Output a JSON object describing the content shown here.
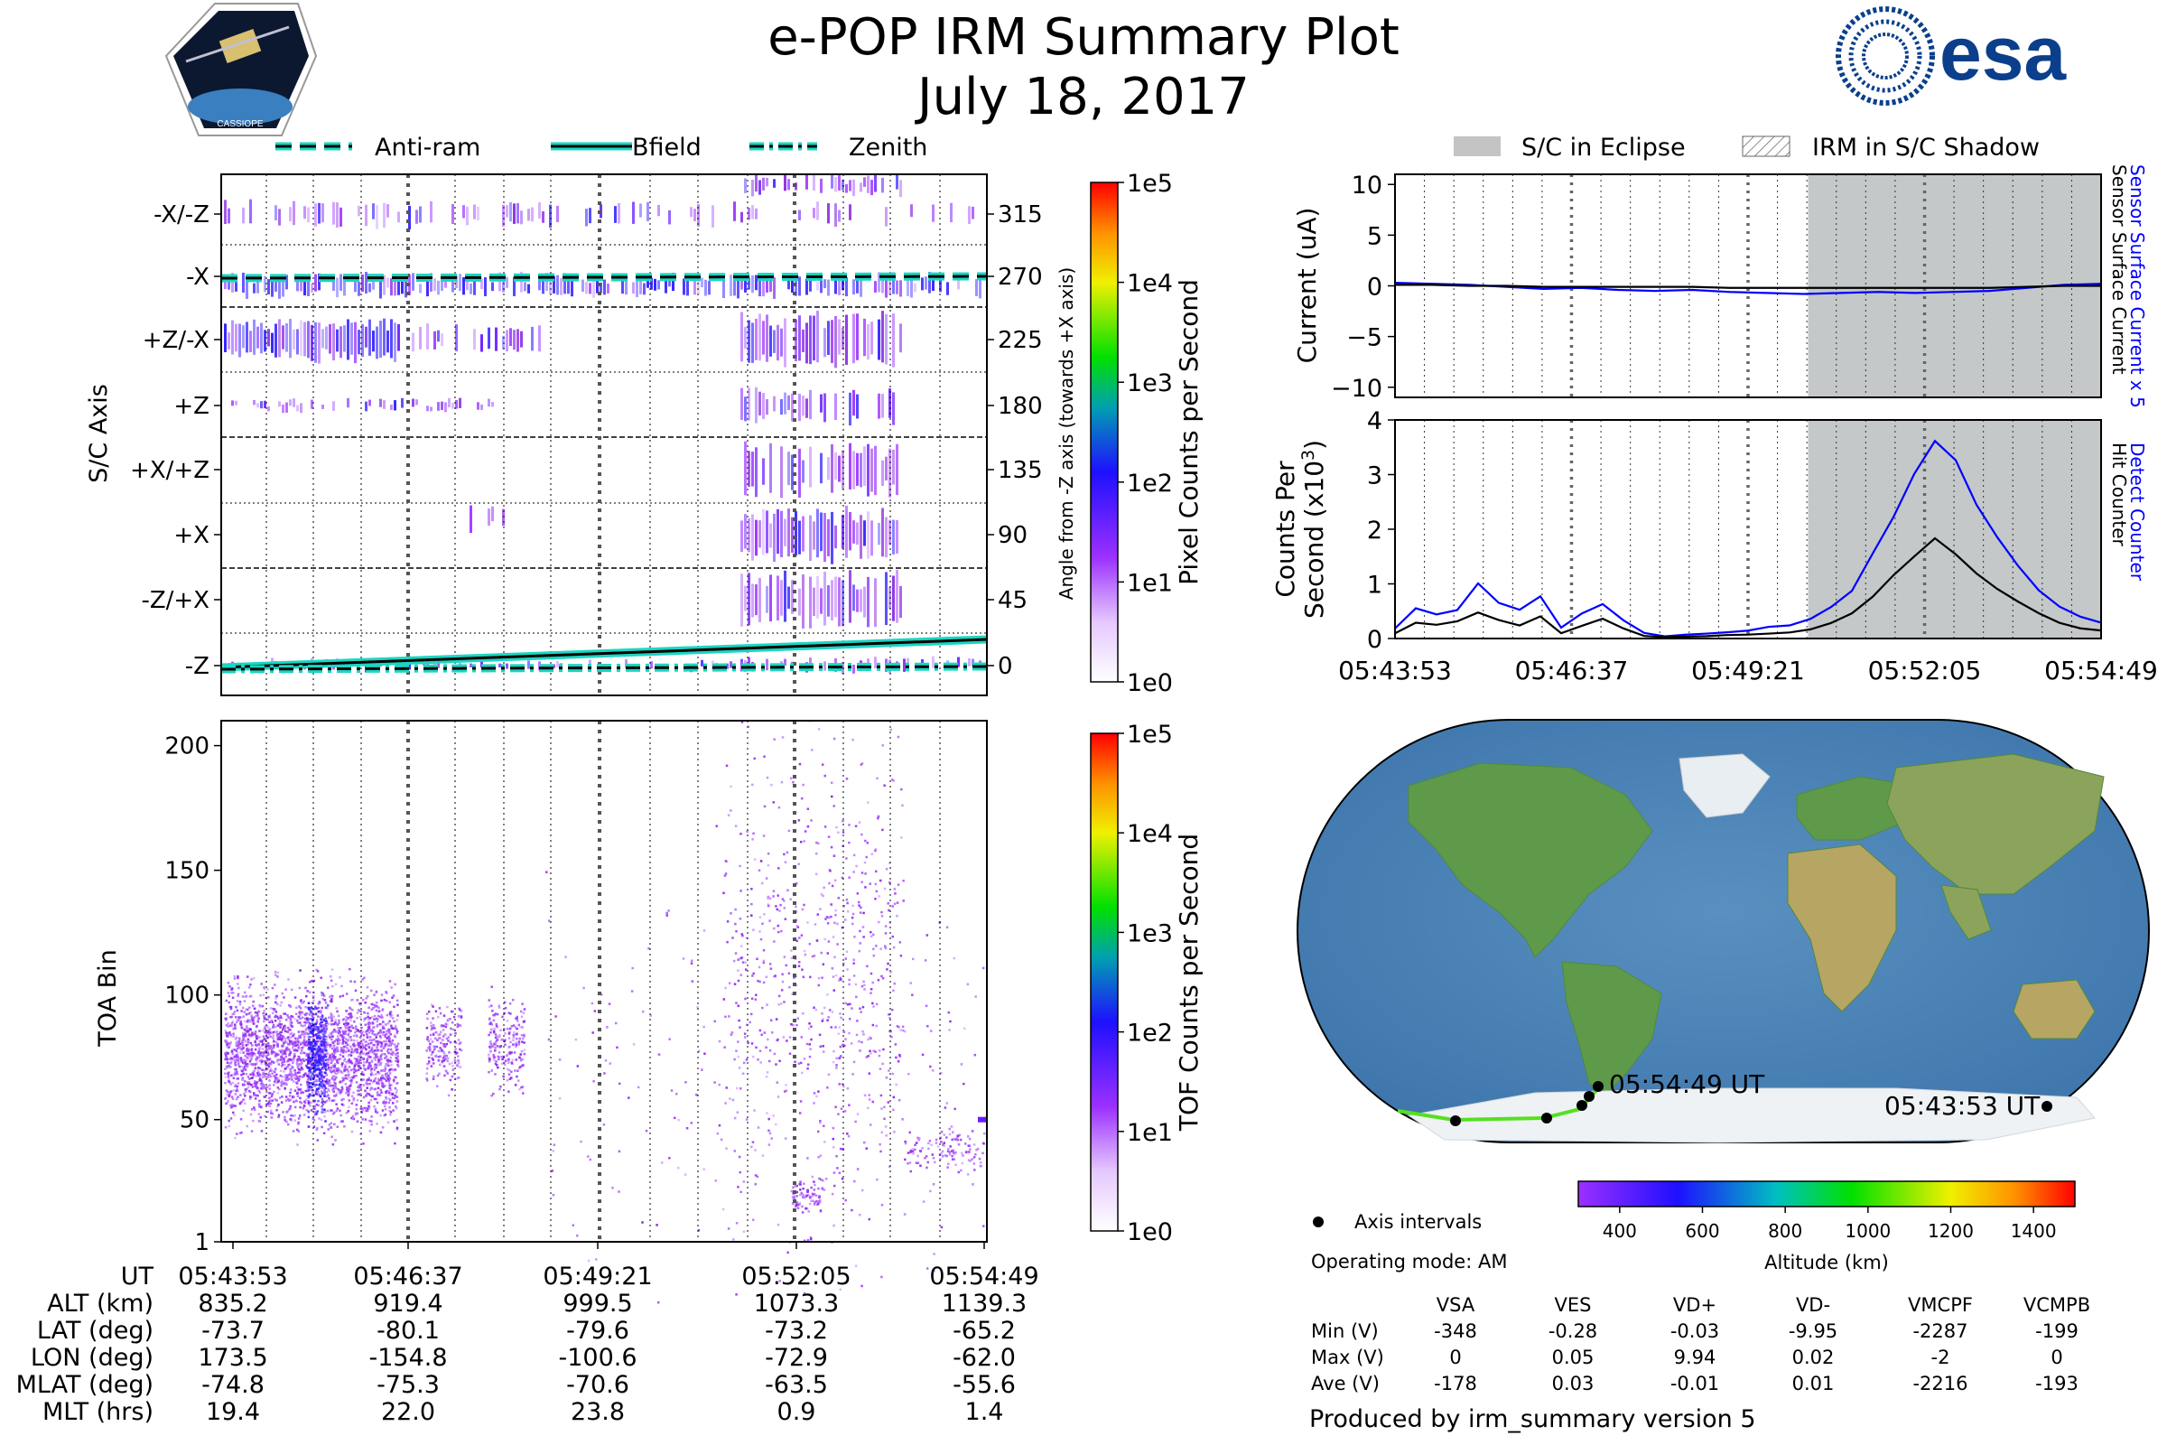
{
  "header": {
    "title": "e-POP IRM Summary Plot",
    "date": "July 18, 2017",
    "logo_left_text": "CASSIOPE",
    "logo_right_text": "esa"
  },
  "chart_data": [
    {
      "id": "sc_axis",
      "type": "heatmap",
      "ylabel": "S/C Axis",
      "ylabel_right": "Angle from -Z axis (towards +X axis)",
      "axis_labels": [
        "-X/-Z",
        "-X",
        "+Z/-X",
        "+Z",
        "+X/+Z",
        "+X",
        "-Z/+X",
        "-Z"
      ],
      "angle_ticks": [
        "315",
        "270",
        "225",
        "180",
        "135",
        "90",
        "45",
        "0"
      ],
      "legend": [
        "Anti-ram",
        "Bfield",
        "Zenith"
      ],
      "colorbar": {
        "label": "Pixel Counts per Second",
        "ticks": [
          "1e0",
          "1e1",
          "1e2",
          "1e3",
          "1e4",
          "1e5"
        ]
      }
    },
    {
      "id": "toa",
      "type": "heatmap",
      "ylabel": "TOA Bin",
      "yticks": [
        "1",
        "50",
        "100",
        "150",
        "200"
      ],
      "ylim": [
        1,
        210
      ],
      "colorbar": {
        "label": "TOF Counts per Second",
        "ticks": [
          "1e0",
          "1e1",
          "1e2",
          "1e3",
          "1e4",
          "1e5"
        ]
      }
    },
    {
      "id": "current",
      "type": "line",
      "ylabel": "Current (uA)",
      "ylim": [
        -11,
        11
      ],
      "yticks": [
        "10",
        "5",
        "0",
        "−5",
        "−10"
      ],
      "right_labels": [
        "Sensor Surface Current x 5",
        "Sensor Surface Current"
      ],
      "legend": [
        "S/C in Eclipse",
        "IRM in S/C Shadow"
      ],
      "eclipse_start_fraction": 0.585,
      "series": [
        {
          "name": "Sensor Surface Current x 5",
          "color": "#0000ff",
          "values": [
            0.3,
            0.2,
            0.1,
            -0.1,
            -0.3,
            -0.2,
            -0.4,
            -0.5,
            -0.4,
            -0.6,
            -0.7,
            -0.8,
            -0.7,
            -0.6,
            -0.7,
            -0.6,
            -0.5,
            -0.2,
            0.1,
            0.2
          ]
        },
        {
          "name": "Sensor Surface Current",
          "color": "#000000",
          "values": [
            0.1,
            0.1,
            0.0,
            0.0,
            -0.1,
            -0.1,
            -0.1,
            -0.1,
            -0.1,
            -0.2,
            -0.2,
            -0.2,
            -0.2,
            -0.2,
            -0.2,
            -0.2,
            -0.2,
            -0.1,
            0.0,
            0.0
          ]
        }
      ]
    },
    {
      "id": "counts",
      "type": "line",
      "ylabel1": "Counts Per",
      "ylabel2": "Second (x10",
      "ylabel_exp": "3",
      "ylim": [
        0,
        4
      ],
      "yticks": [
        "4",
        "3",
        "2",
        "1",
        "0"
      ],
      "right_labels": [
        "Detect Counter",
        "Hit Counter"
      ],
      "xticks": [
        "05:43:53",
        "05:46:37",
        "05:49:21",
        "05:52:05",
        "05:54:49"
      ],
      "series": [
        {
          "name": "Detect Counter",
          "color": "#0000ff",
          "values": [
            0.2,
            0.55,
            0.45,
            0.55,
            1.0,
            0.65,
            0.5,
            0.8,
            0.2,
            0.45,
            0.65,
            0.35,
            0.1,
            0.05,
            0.08,
            0.1,
            0.12,
            0.15,
            0.2,
            0.25,
            0.35,
            0.55,
            0.9,
            1.5,
            2.3,
            3.0,
            3.65,
            3.2,
            2.5,
            1.8,
            1.3,
            0.9,
            0.6,
            0.4,
            0.3
          ]
        },
        {
          "name": "Hit Counter",
          "color": "#000000",
          "values": [
            0.1,
            0.3,
            0.25,
            0.3,
            0.5,
            0.35,
            0.25,
            0.4,
            0.1,
            0.25,
            0.35,
            0.2,
            0.05,
            0.03,
            0.04,
            0.05,
            0.06,
            0.08,
            0.1,
            0.12,
            0.18,
            0.28,
            0.45,
            0.8,
            1.2,
            1.55,
            1.85,
            1.6,
            1.2,
            0.9,
            0.65,
            0.45,
            0.3,
            0.2,
            0.15
          ]
        }
      ]
    },
    {
      "id": "map",
      "type": "scatter",
      "labels": [
        "05:54:49 UT",
        "05:43:53 UT"
      ],
      "legend": "Axis intervals",
      "operating_mode": "Operating mode: AM",
      "colorbar": {
        "label": "Altitude (km)",
        "ticks": [
          "400",
          "600",
          "800",
          "1000",
          "1200",
          "1400"
        ]
      }
    }
  ],
  "ephemeris": {
    "headers": [
      "UT",
      "ALT (km)",
      "LAT (deg)",
      "LON (deg)",
      "MLAT (deg)",
      "MLT (hrs)"
    ],
    "columns": [
      [
        "05:43:53",
        "835.2",
        "-73.7",
        "173.5",
        "-74.8",
        "19.4"
      ],
      [
        "05:46:37",
        "919.4",
        "-80.1",
        "-154.8",
        "-75.3",
        "22.0"
      ],
      [
        "05:49:21",
        "999.5",
        "-79.6",
        "-100.6",
        "-70.6",
        "23.8"
      ],
      [
        "05:52:05",
        "1073.3",
        "-73.2",
        "-72.9",
        "-63.5",
        "0.9"
      ],
      [
        "05:54:49",
        "1139.3",
        "-65.2",
        "-62.0",
        "-55.6",
        "1.4"
      ]
    ]
  },
  "stats": {
    "columns": [
      "VSA",
      "VES",
      "VD+",
      "VD-",
      "VMCPF",
      "VCMPB"
    ],
    "rows": [
      {
        "label": "Min (V)",
        "values": [
          "-348",
          "-0.28",
          "-0.03",
          "-9.95",
          "-2287",
          "-199"
        ]
      },
      {
        "label": "Max (V)",
        "values": [
          "0",
          "0.05",
          "9.94",
          "0.02",
          "-2",
          "0"
        ]
      },
      {
        "label": "Ave (V)",
        "values": [
          "-178",
          "0.03",
          "-0.01",
          "0.01",
          "-2216",
          "-193"
        ]
      }
    ]
  },
  "footer": {
    "produced_by": "Produced by irm_summary version 5"
  }
}
